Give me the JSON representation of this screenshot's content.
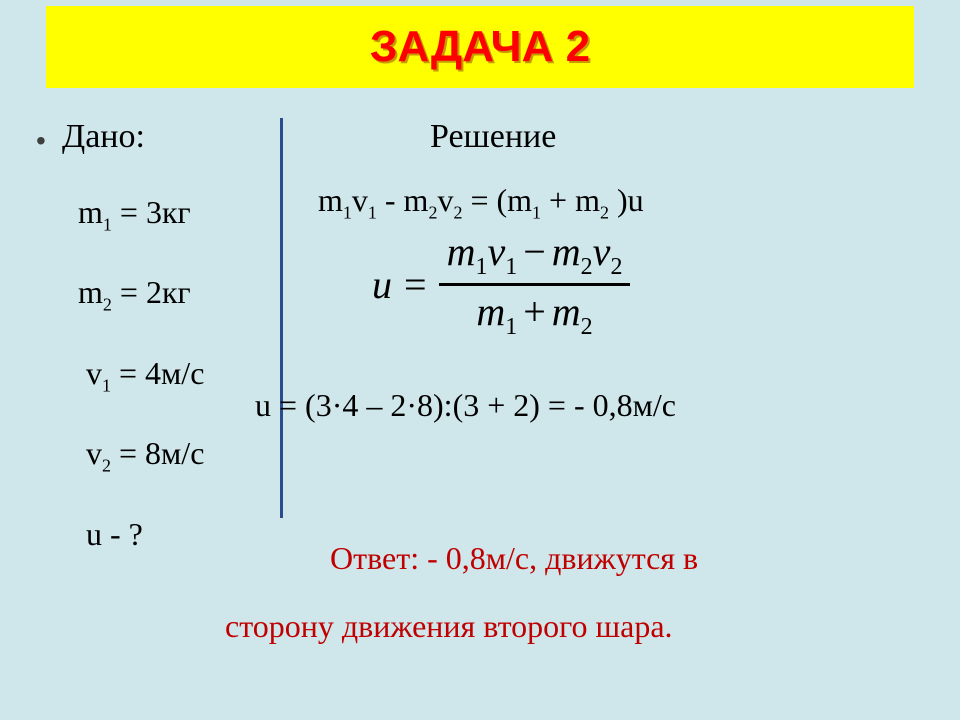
{
  "colors": {
    "page_bg": "#cfe6ea",
    "title_bg": "#ffff00",
    "title_text": "#ff0000",
    "title_shadow": "#c79a00",
    "body_text": "#000000",
    "answer_text": "#c00000",
    "divider": "#2a4b8d"
  },
  "typography": {
    "title_fontsize": 44,
    "body_fontsize": 32,
    "formula_fontsize": 40,
    "formula_subscript_fontsize": 24,
    "body_subscript_fontsize": 18,
    "title_font": "Arial",
    "body_font": "Times New Roman"
  },
  "title": "ЗАДАЧА 2",
  "labels": {
    "given": "Дано:",
    "solution": "Решение"
  },
  "given": {
    "m1_label": "m",
    "m1_sub": "1",
    "m1_rest": " = 3кг",
    "m2_label": "m",
    "m2_sub": "2",
    "m2_rest": " = 2кг",
    "v1_label": "v",
    "v1_sub": "1",
    "v1_rest": " = 4м/с",
    "v2_label": "v",
    "v2_sub": "2",
    "v2_rest": " = 8м/с",
    "unknown": "u - ?"
  },
  "eq1": {
    "p1": "m",
    "s1": "1",
    "p2": "v",
    "s2": "1",
    "minus": " - ",
    "p3": "m",
    "s3": "2",
    "p4": "v",
    "s4": "2",
    "eq": " = (",
    "p5": "m",
    "s5": "1",
    "plus": " + ",
    "p6": "m",
    "s6": "2",
    "close": " )u"
  },
  "formula": {
    "lhs": "u",
    "eq": "=",
    "num": {
      "m": "m",
      "s1": "1",
      "v": "v",
      "sv1": "1",
      "minus": "−",
      "m2": "m",
      "s2": "2",
      "v2": "v",
      "sv2": "2"
    },
    "den": {
      "m": "m",
      "s1": "1",
      "plus": "+",
      "m2": "m",
      "s2": "2"
    }
  },
  "calc": "u = (3·4 – 2·8):(3 + 2) = - 0,8м/с",
  "answer": {
    "line1": "Ответ: - 0,8м/с, движутся в",
    "line2": "сторону движения второго  шара."
  }
}
